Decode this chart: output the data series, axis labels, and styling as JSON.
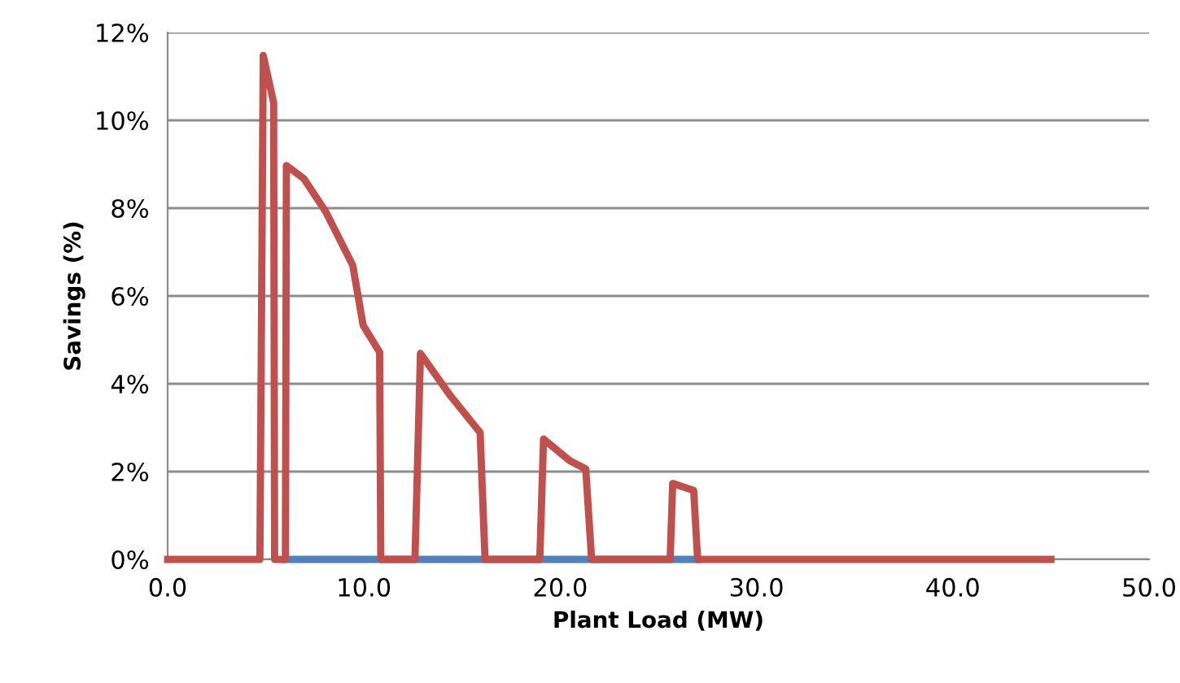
{
  "chart_data": {
    "type": "line",
    "xlabel": "Plant Load (MW)",
    "ylabel": "Savings (%)",
    "xlim": [
      0,
      50
    ],
    "ylim": [
      0,
      12
    ],
    "grid": "y",
    "marker": "none",
    "line_style": "solid",
    "legend": false,
    "xticks": [
      {
        "value": 0,
        "label": "0.0"
      },
      {
        "value": 10,
        "label": "10.0"
      },
      {
        "value": 20,
        "label": "20.0"
      },
      {
        "value": 30,
        "label": "30.0"
      },
      {
        "value": 40,
        "label": "40.0"
      },
      {
        "value": 50,
        "label": "50.0"
      }
    ],
    "yticks": [
      {
        "value": 0,
        "label": "0%"
      },
      {
        "value": 2,
        "label": "2%"
      },
      {
        "value": 4,
        "label": "4%"
      },
      {
        "value": 6,
        "label": "6%"
      },
      {
        "value": 8,
        "label": "8%"
      },
      {
        "value": 10,
        "label": "10%"
      },
      {
        "value": 12,
        "label": "12%"
      }
    ],
    "series": [
      {
        "color": "#4f81bd",
        "x": [
          6,
          27
        ],
        "values": [
          0,
          0
        ]
      },
      {
        "color": "#c0504d",
        "x": [
          0,
          4.7,
          4.87,
          5.4,
          5.45,
          6.0,
          6.05,
          6.94,
          8.04,
          9.43,
          9.96,
          10.8,
          10.86,
          12.6,
          12.88,
          14.4,
          15.92,
          16.17,
          18.96,
          19.15,
          20.48,
          21.3,
          21.6,
          25.6,
          25.73,
          26.8,
          27.0,
          45
        ],
        "values": [
          0,
          0,
          11.48,
          10.4,
          0,
          0,
          8.97,
          8.67,
          7.93,
          6.7,
          5.33,
          4.72,
          0,
          0,
          4.69,
          3.73,
          2.89,
          0,
          0,
          2.74,
          2.25,
          2.06,
          0,
          0,
          1.73,
          1.57,
          0,
          0
        ]
      }
    ]
  }
}
